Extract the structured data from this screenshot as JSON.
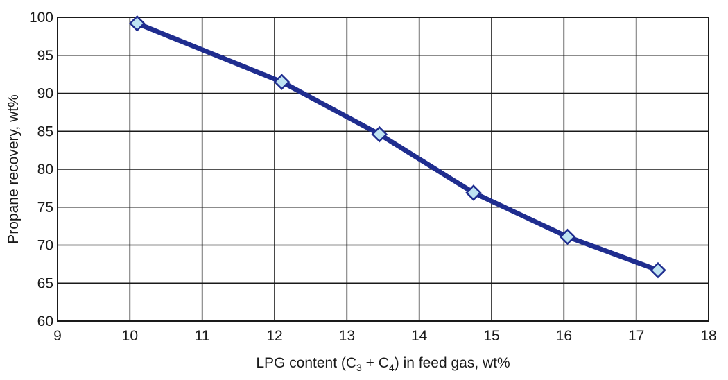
{
  "chart_data": {
    "type": "line",
    "title": "",
    "xlabel_parts": {
      "before": "LPG content (C",
      "sub1": "3",
      "middle": " + C",
      "sub2": "4",
      "after": ") in feed gas, wt%"
    },
    "ylabel": "Propane recovery, wt%",
    "xlim": [
      9,
      18
    ],
    "ylim": [
      60,
      100
    ],
    "xticks": [
      "9",
      "10",
      "11",
      "12",
      "13",
      "14",
      "15",
      "16",
      "17",
      "18"
    ],
    "yticks": [
      "60",
      "65",
      "70",
      "75",
      "80",
      "85",
      "90",
      "95",
      "100"
    ],
    "grid": true,
    "legend": "none",
    "line_color": "#1f2d8f",
    "marker_fill": "#bfe3f2",
    "marker_stroke": "#1f2d8f",
    "marker": "diamond",
    "series": [
      {
        "x": [
          10.1,
          12.1,
          13.45,
          14.75,
          16.05,
          17.3
        ],
        "y": [
          99.2,
          91.5,
          84.6,
          76.9,
          71.1,
          66.7
        ]
      }
    ]
  }
}
